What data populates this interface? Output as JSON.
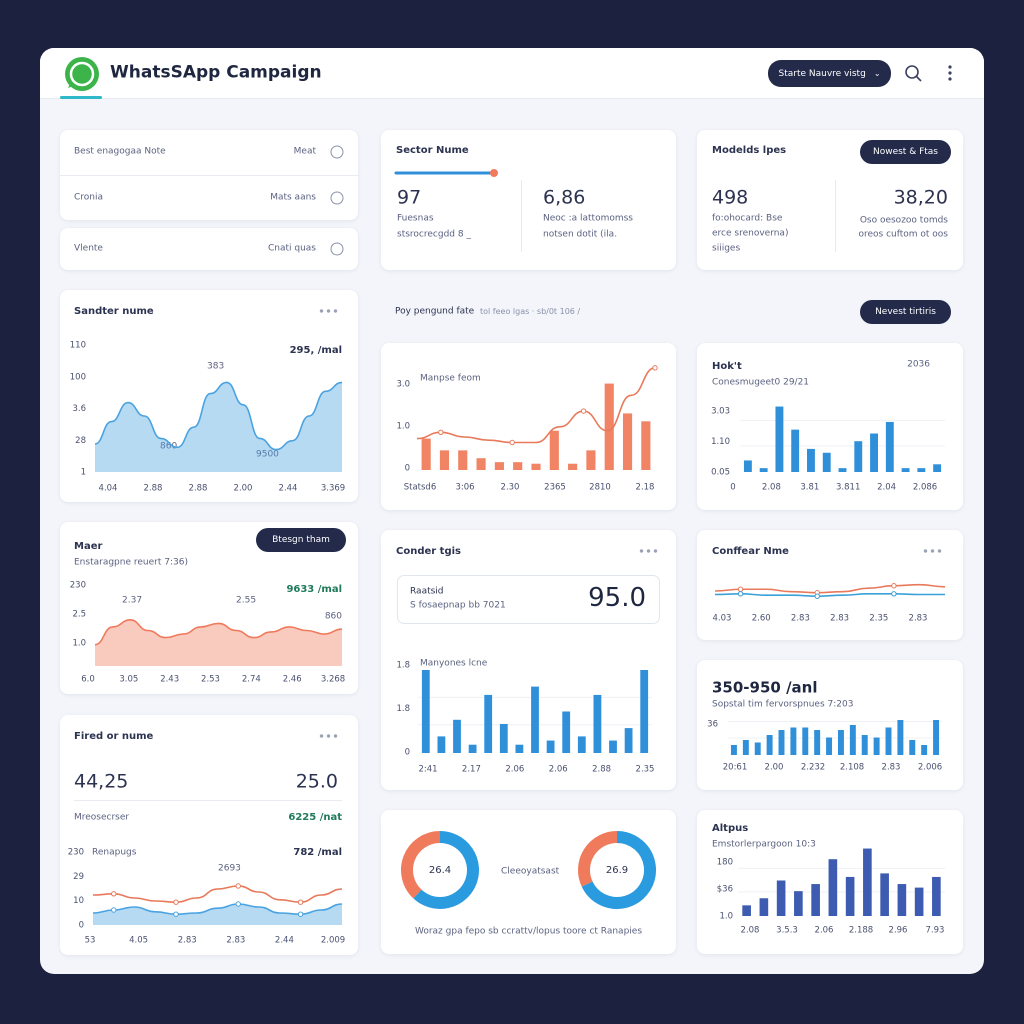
{
  "header": {
    "title": "WhatsSApp Campaign",
    "dropdown": "Starte Nauvre vistg"
  },
  "list": [
    [
      "Best enagogaa Note",
      "Meat"
    ],
    [
      "Cronia",
      "Mats aans"
    ],
    [
      "Vlente",
      "Cnati quas"
    ]
  ],
  "stats_middle": {
    "title": "Sector Nume",
    "items": [
      {
        "value": "97",
        "lines": [
          "Fuesnas",
          "stsrocrecgdd 8 _"
        ]
      },
      {
        "value": "6,86",
        "lines": [
          "Neoc :a lattomomss",
          "notsen dotit (ila."
        ]
      }
    ]
  },
  "stats_right": {
    "title": "Modelds lpes",
    "button": "Nowest & Ftas",
    "items": [
      {
        "value": "498",
        "lines": [
          "fo:ohocard: Bse",
          "erce srenoverna)",
          "siiiges"
        ]
      },
      {
        "value": "38,20",
        "lines": [
          "Oso oesozoo tomds",
          "oreos cuftom ot oos"
        ]
      }
    ]
  },
  "section": {
    "title": "Poy pengund fate",
    "note": "tol feeo lgas · sb/0t 106 /",
    "button": "Nevest tirtiris"
  },
  "donut_card": {
    "caption": "Cleeoyatsast",
    "footer": "Woraz gpa fepo sb ccrattv/lopus toore ct Ranapies"
  },
  "chart_data": [
    {
      "type": "area",
      "title": "Sandter nume",
      "annotations": [
        "295, /mal",
        "383",
        "860",
        "9500"
      ],
      "ylabels": [
        "110",
        "100",
        "3.6",
        "28",
        "1"
      ],
      "xlabels": [
        "4.04",
        "2.88",
        "2.88",
        "2.00",
        "2.44",
        "3.369"
      ],
      "ylim": [
        0,
        100
      ],
      "series": [
        {
          "color": "#4aa3e0",
          "values": [
            25,
            45,
            62,
            50,
            30,
            22,
            40,
            70,
            80,
            60,
            30,
            20,
            28,
            50,
            72,
            80
          ]
        }
      ]
    },
    {
      "type": "area",
      "title": "Maer",
      "subtitle": "Enstaragpne reuert 7:36)",
      "button": "Btesgn tham",
      "annotations": [
        "9633 /mal",
        "2.37",
        "2.55",
        "860"
      ],
      "ylabels": [
        "230",
        "2.5",
        "1.0"
      ],
      "xlabels": [
        "6.0",
        "3.05",
        "2.43",
        "2.53",
        "2.74",
        "2.46",
        "3.268"
      ],
      "ylim": [
        0,
        100
      ],
      "series": [
        {
          "color": "#f07a5c",
          "values": [
            30,
            55,
            65,
            50,
            40,
            45,
            55,
            60,
            50,
            40,
            48,
            55,
            50,
            45,
            52
          ]
        }
      ]
    },
    {
      "type": "line",
      "title": "Fired or nume",
      "stats": [
        "44,25",
        "25.0"
      ],
      "rows": [
        [
          "Mreosecrser",
          "6225 /nat"
        ],
        [
          "Renapugs",
          "782 /mal"
        ]
      ],
      "annotations": [
        "2693"
      ],
      "ylabels": [
        "230",
        "29",
        "10",
        "0"
      ],
      "xlabels": [
        "53",
        "4.05",
        "2.83",
        "2.83",
        "2.44",
        "2.009"
      ],
      "ylim": [
        0,
        100
      ],
      "series": [
        {
          "color": "#e8795a",
          "values": [
            50,
            52,
            45,
            40,
            38,
            45,
            60,
            65,
            55,
            42,
            38,
            50,
            60
          ]
        },
        {
          "color": "#4aa3e0",
          "fill": true,
          "values": [
            20,
            25,
            30,
            22,
            18,
            20,
            28,
            35,
            30,
            20,
            18,
            25,
            35
          ]
        }
      ]
    },
    {
      "type": "bar_line",
      "subtitle": "Manpse feom",
      "ylabels": [
        "3.0",
        "1.0",
        "0"
      ],
      "xlabels": [
        "Statsd6",
        "3:06",
        "2.30",
        "2365",
        "2810",
        "2.18"
      ],
      "ylim": [
        0,
        140
      ],
      "series": [
        {
          "kind": "bar",
          "color": "#f28466",
          "values": [
            40,
            25,
            25,
            15,
            10,
            10,
            8,
            50,
            8,
            25,
            110,
            72,
            62
          ]
        },
        {
          "kind": "line",
          "color": "#e8795a",
          "values": [
            40,
            48,
            42,
            38,
            35,
            35,
            55,
            75,
            50,
            95,
            130
          ]
        }
      ]
    },
    {
      "type": "bar",
      "title": "Conder tgis",
      "box": {
        "title": "Raatsid",
        "subtitle": "S fosaepnap bb 7021",
        "value": "95.0"
      },
      "subtitle": "Manyones lcne",
      "ylabels": [
        "1.8",
        "1.8",
        "0"
      ],
      "xlabels": [
        "2:41",
        "2.17",
        "2.06",
        "2.06",
        "2.88",
        "2.35"
      ],
      "ylim": [
        0,
        100
      ],
      "color": "#2f8fd8",
      "values": [
        100,
        20,
        40,
        10,
        70,
        35,
        10,
        80,
        15,
        50,
        20,
        70,
        15,
        30,
        100
      ]
    },
    {
      "type": "bar",
      "title": "Hok't",
      "subtitle": "Conesmugeet0 29/21",
      "annotations": [
        "2036"
      ],
      "ylabels": [
        "3.03",
        "1.10",
        "0.05"
      ],
      "xlabels": [
        "0",
        "2.08",
        "3.81",
        "3.811",
        "2.04",
        "2.086"
      ],
      "ylim": [
        0,
        100
      ],
      "color": "#2f8fd8",
      "values": [
        15,
        5,
        85,
        55,
        30,
        25,
        5,
        40,
        50,
        65,
        5,
        5,
        10
      ]
    },
    {
      "type": "line",
      "title": "Conffear Nme",
      "xlabels": [
        "4.03",
        "2.60",
        "2.83",
        "2.83",
        "2.35",
        "2.83"
      ],
      "ylim": [
        0,
        100
      ],
      "series": [
        {
          "color": "#e8795a",
          "values": [
            40,
            45,
            45,
            38,
            35,
            38,
            48,
            55,
            58,
            52
          ]
        },
        {
          "color": "#3aa0d8",
          "values": [
            30,
            32,
            28,
            28,
            25,
            28,
            32,
            32,
            30,
            30
          ]
        }
      ]
    },
    {
      "type": "bar",
      "title": "350-950 /anl",
      "subtitle": "Sopstal tim fervorspnues 7:203",
      "ylabels": [
        "36"
      ],
      "xlabels": [
        "20:61",
        "2.00",
        "2.232",
        "2.108",
        "2.83",
        "2.006"
      ],
      "ylim": [
        0,
        100
      ],
      "color": "#2f8fd8",
      "values": [
        20,
        30,
        25,
        40,
        50,
        55,
        55,
        50,
        35,
        50,
        60,
        40,
        35,
        55,
        70,
        30,
        20,
        70
      ]
    },
    {
      "type": "bar",
      "title": "Altpus",
      "subtitle": "Emstorlerpargoon 10:3",
      "ylabels": [
        "180",
        "$36",
        "1.0"
      ],
      "xlabels": [
        "2.08",
        "3.5.3",
        "2.06",
        "2.188",
        "2.96",
        "7.93"
      ],
      "ylim": [
        0,
        100
      ],
      "color": "#3d5bb0",
      "values": [
        15,
        25,
        50,
        35,
        45,
        80,
        55,
        95,
        60,
        45,
        40,
        55
      ]
    },
    {
      "type": "donut",
      "center_label": "26.4",
      "colors": [
        "#2b9be0",
        "#f07a5c"
      ],
      "values": [
        62,
        38
      ]
    },
    {
      "type": "donut",
      "center_label": "26.9",
      "colors": [
        "#2b9be0",
        "#f07a5c"
      ],
      "values": [
        68,
        32
      ]
    }
  ]
}
